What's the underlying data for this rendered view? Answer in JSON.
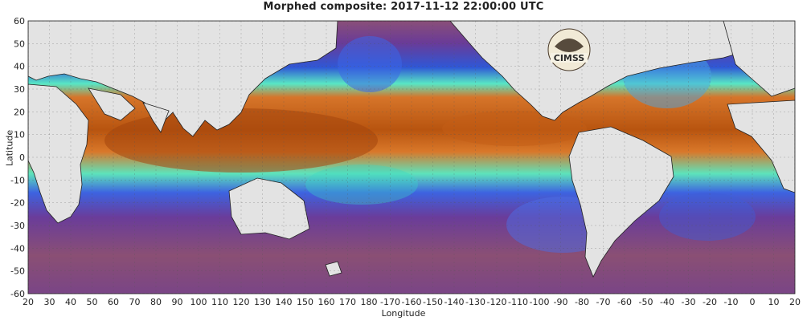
{
  "figure": {
    "title": "Morphed composite: 2017-11-12 22:00:00 UTC",
    "xlabel": "Longitude",
    "ylabel": "Latitude",
    "logo_text": "CIMSS"
  },
  "chart_data": {
    "type": "heatmap",
    "title": "Morphed composite: 2017-11-12 22:00:00 UTC",
    "xlabel": "Longitude",
    "ylabel": "Latitude",
    "x_ticks": [
      "20",
      "30",
      "40",
      "50",
      "60",
      "70",
      "80",
      "90",
      "100",
      "110",
      "120",
      "130",
      "140",
      "150",
      "160",
      "170",
      "180",
      "-170",
      "-160",
      "-150",
      "-140",
      "-130",
      "-120",
      "-110",
      "-100",
      "-90",
      "-80",
      "-70",
      "-60",
      "-50",
      "-40",
      "-30",
      "-20",
      "-10",
      "0",
      "10",
      "20"
    ],
    "y_ticks": [
      "60",
      "50",
      "40",
      "30",
      "20",
      "10",
      "0",
      "-10",
      "-20",
      "-30",
      "-40",
      "-50",
      "-60"
    ],
    "xlim": [
      20,
      380
    ],
    "ylim": [
      -60,
      60
    ],
    "colors": {
      "land": "#e3e3e3",
      "dry": "#7a4a8a",
      "low": "#3a5bd8",
      "mid": "#53e3c9",
      "high": "#d86a16",
      "very_high": "#5a2a0c"
    }
  }
}
